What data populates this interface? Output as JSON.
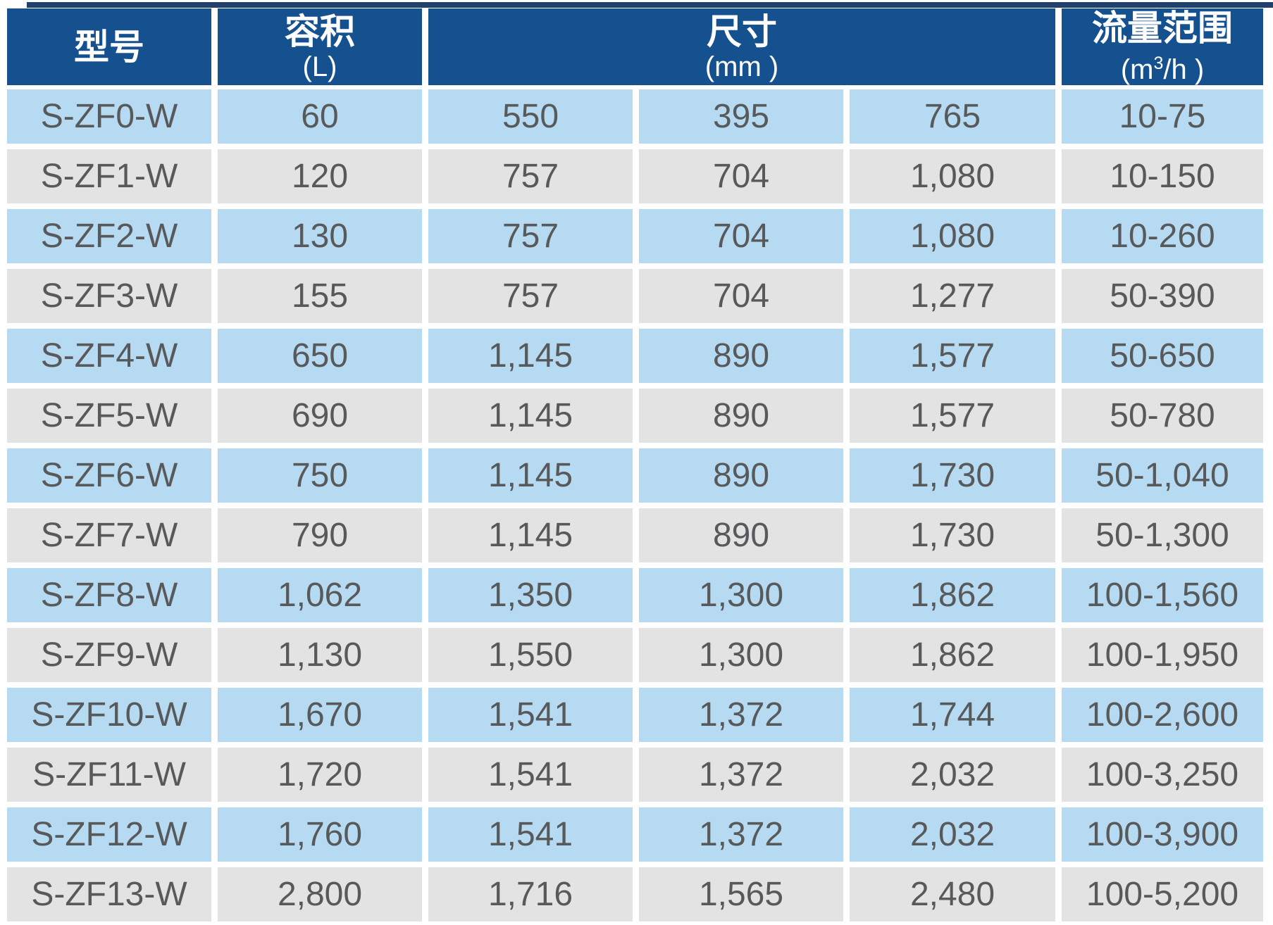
{
  "colors": {
    "header_bg": "#15508f",
    "top_line": "#20406e",
    "row_blue": "#b5daf1",
    "row_gray": "#e4e3e3",
    "body_text": "#58595b",
    "header_text": "#ffffff"
  },
  "table": {
    "header": {
      "model": {
        "title": "型号"
      },
      "volume": {
        "title": "容积",
        "unit": "(L)"
      },
      "size": {
        "title": "尺寸",
        "unit": "(mm )"
      },
      "flow": {
        "title": "流量范围",
        "unit_pre": "(m",
        "unit_sup": "3",
        "unit_post": "/h )"
      }
    },
    "rows": [
      {
        "model": "S-ZF0-W",
        "volume": "60",
        "dim1": "550",
        "dim2": "395",
        "dim3": "765",
        "flow": "10-75"
      },
      {
        "model": "S-ZF1-W",
        "volume": "120",
        "dim1": "757",
        "dim2": "704",
        "dim3": "1,080",
        "flow": "10-150"
      },
      {
        "model": "S-ZF2-W",
        "volume": "130",
        "dim1": "757",
        "dim2": "704",
        "dim3": "1,080",
        "flow": "10-260"
      },
      {
        "model": "S-ZF3-W",
        "volume": "155",
        "dim1": "757",
        "dim2": "704",
        "dim3": "1,277",
        "flow": "50-390"
      },
      {
        "model": "S-ZF4-W",
        "volume": "650",
        "dim1": "1,145",
        "dim2": "890",
        "dim3": "1,577",
        "flow": "50-650"
      },
      {
        "model": "S-ZF5-W",
        "volume": "690",
        "dim1": "1,145",
        "dim2": "890",
        "dim3": "1,577",
        "flow": "50-780"
      },
      {
        "model": "S-ZF6-W",
        "volume": "750",
        "dim1": "1,145",
        "dim2": "890",
        "dim3": "1,730",
        "flow": "50-1,040"
      },
      {
        "model": "S-ZF7-W",
        "volume": "790",
        "dim1": "1,145",
        "dim2": "890",
        "dim3": "1,730",
        "flow": "50-1,300"
      },
      {
        "model": "S-ZF8-W",
        "volume": "1,062",
        "dim1": "1,350",
        "dim2": "1,300",
        "dim3": "1,862",
        "flow": "100-1,560"
      },
      {
        "model": "S-ZF9-W",
        "volume": "1,130",
        "dim1": "1,550",
        "dim2": "1,300",
        "dim3": "1,862",
        "flow": "100-1,950"
      },
      {
        "model": "S-ZF10-W",
        "volume": "1,670",
        "dim1": "1,541",
        "dim2": "1,372",
        "dim3": "1,744",
        "flow": "100-2,600"
      },
      {
        "model": "S-ZF11-W",
        "volume": "1,720",
        "dim1": "1,541",
        "dim2": "1,372",
        "dim3": "2,032",
        "flow": "100-3,250"
      },
      {
        "model": "S-ZF12-W",
        "volume": "1,760",
        "dim1": "1,541",
        "dim2": "1,372",
        "dim3": "2,032",
        "flow": "100-3,900"
      },
      {
        "model": "S-ZF13-W",
        "volume": "2,800",
        "dim1": "1,716",
        "dim2": "1,565",
        "dim3": "2,480",
        "flow": "100-5,200"
      }
    ]
  }
}
